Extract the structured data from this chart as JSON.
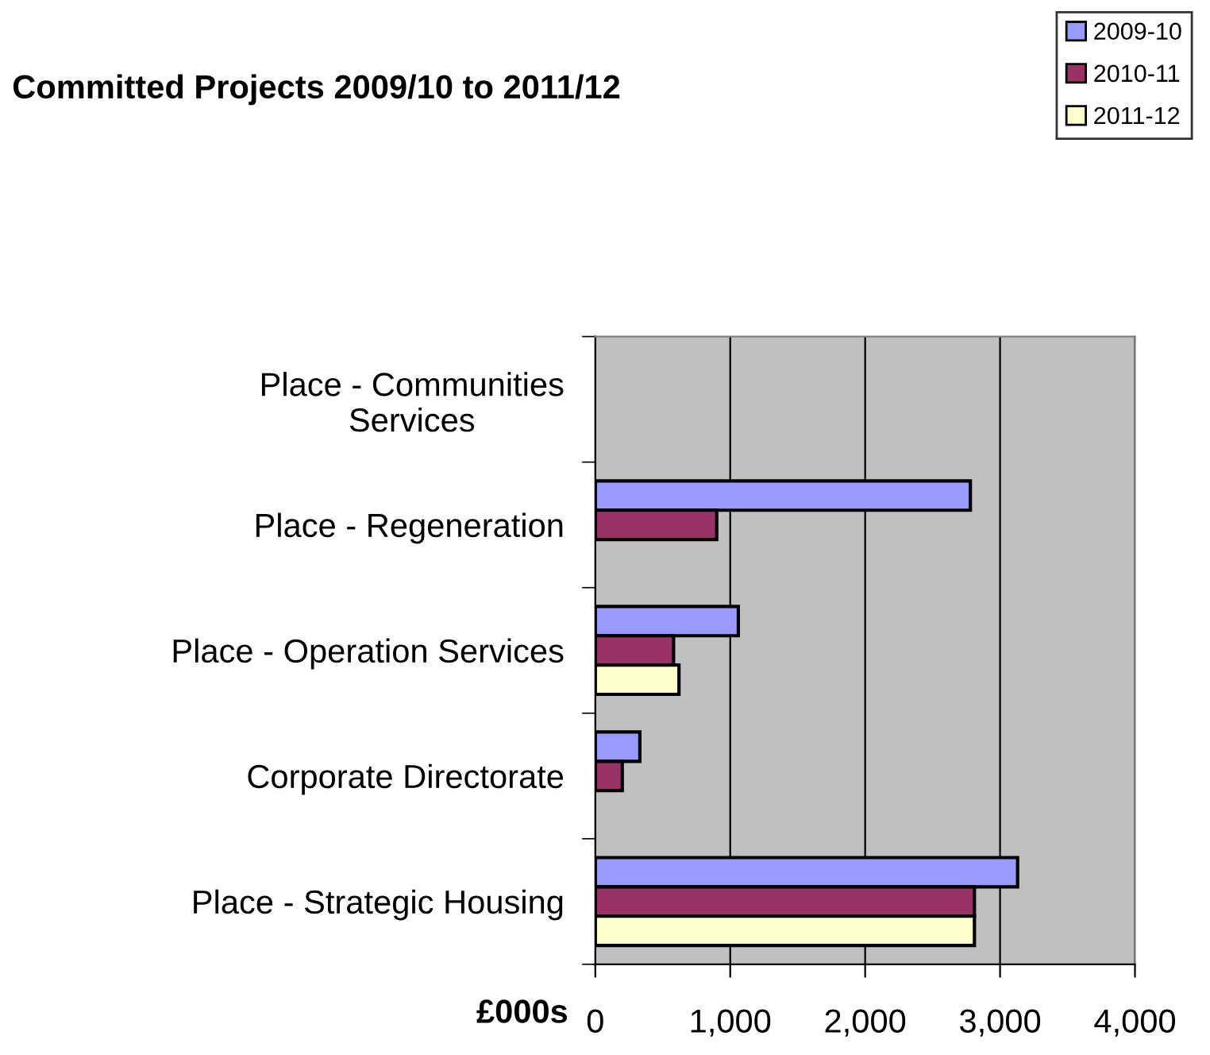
{
  "chart_data": {
    "type": "bar",
    "orientation": "horizontal",
    "title": "Committed Projects 2009/10 to 2011/12",
    "xlabel": "£000s",
    "categories": [
      "Place - Communities\nServices",
      "Place - Regeneration",
      "Place - Operation Services",
      "Corporate Directorate",
      "Place - Strategic Housing"
    ],
    "series": [
      {
        "name": "2009-10",
        "color": "#9999ff",
        "values": [
          null,
          2780,
          1060,
          330,
          3130
        ]
      },
      {
        "name": "2010-11",
        "color": "#993366",
        "values": [
          null,
          900,
          580,
          200,
          2810
        ]
      },
      {
        "name": "2011-12",
        "color": "#ffffcc",
        "values": [
          null,
          null,
          620,
          null,
          2810
        ]
      }
    ],
    "xlim": [
      0,
      4000
    ],
    "xticks": [
      {
        "value": 0,
        "label": "0"
      },
      {
        "value": 1000,
        "label": "1,000"
      },
      {
        "value": 2000,
        "label": "2,000"
      },
      {
        "value": 3000,
        "label": "3,000"
      },
      {
        "value": 4000,
        "label": "4,000"
      }
    ],
    "grid": "x",
    "legend": "top right"
  }
}
